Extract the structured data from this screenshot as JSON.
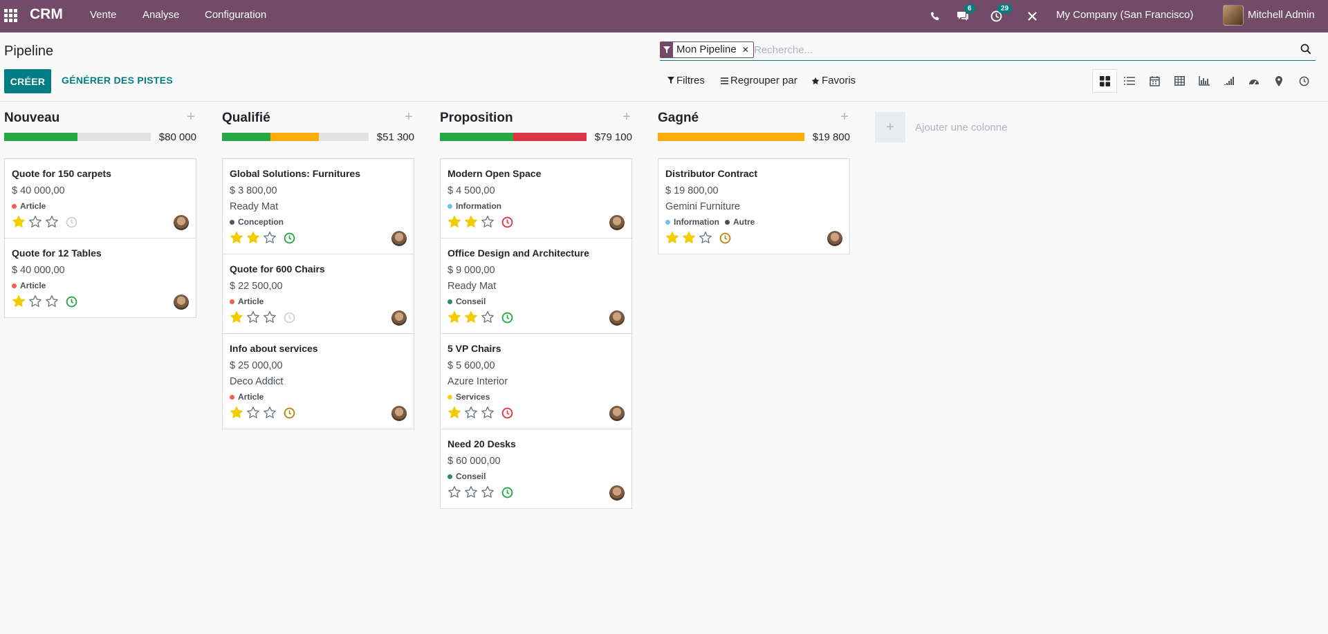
{
  "app": {
    "brand": "CRM",
    "menus": [
      "Vente",
      "Analyse",
      "Configuration"
    ],
    "messages_badge": "6",
    "activities_badge": "29",
    "company": "My Company (San Francisco)",
    "user": "Mitchell Admin"
  },
  "control": {
    "breadcrumb": "Pipeline",
    "facet": "Mon Pipeline",
    "search_placeholder": "Recherche...",
    "create_label": "CRÉER",
    "generate_label": "GÉNÉRER DES PISTES",
    "filters_label": "Filtres",
    "groupby_label": "Regrouper par",
    "favorites_label": "Favoris",
    "views": [
      "kanban",
      "list",
      "calendar",
      "pivot",
      "graph",
      "cohort",
      "dashboard",
      "map",
      "activity"
    ]
  },
  "colors": {
    "primary": "#714b67",
    "accent": "#017e84",
    "progress_green": "#28a745",
    "progress_orange": "#fbac06",
    "progress_red": "#dc3545",
    "progress_grey": "#e2e2e2"
  },
  "add_column_label": "Ajouter une colonne",
  "columns": [
    {
      "title": "Nouveau",
      "total": "$80 000",
      "progress": [
        {
          "color": "#28a745",
          "fraction": 0.5
        }
      ],
      "cards": [
        {
          "title": "Quote for 150 carpets",
          "amount": "$ 40 000,00",
          "partner": "",
          "tags": [
            {
              "label": "Article",
              "color": "#f06050"
            }
          ],
          "stars": 1,
          "activity": "none"
        },
        {
          "title": "Quote for 12 Tables",
          "amount": "$ 40 000,00",
          "partner": "",
          "tags": [
            {
              "label": "Article",
              "color": "#f06050"
            }
          ],
          "stars": 1,
          "activity": "planned"
        }
      ]
    },
    {
      "title": "Qualifié",
      "total": "$51 300",
      "progress": [
        {
          "color": "#28a745",
          "fraction": 0.33
        },
        {
          "color": "#fbac06",
          "fraction": 0.33
        }
      ],
      "cards": [
        {
          "title": "Global Solutions: Furnitures",
          "amount": "$ 3 800,00",
          "partner": "Ready Mat",
          "tags": [
            {
              "label": "Conception",
              "color": "#6c4a5f"
            }
          ],
          "stars": 2,
          "activity": "planned"
        },
        {
          "title": "Quote for 600 Chairs",
          "amount": "$ 22 500,00",
          "partner": "",
          "tags": [
            {
              "label": "Article",
              "color": "#f06050"
            }
          ],
          "stars": 1,
          "activity": "none"
        },
        {
          "title": "Info about services",
          "amount": "$ 25 000,00",
          "partner": "Deco Addict",
          "tags": [
            {
              "label": "Article",
              "color": "#f06050"
            }
          ],
          "stars": 1,
          "activity": "today"
        }
      ]
    },
    {
      "title": "Proposition",
      "total": "$79 100",
      "progress": [
        {
          "color": "#28a745",
          "fraction": 0.5
        },
        {
          "color": "#dc3545",
          "fraction": 0.5
        }
      ],
      "cards": [
        {
          "title": "Modern Open Space",
          "amount": "$ 4 500,00",
          "partner": "",
          "tags": [
            {
              "label": "Information",
              "color": "#6cc1ed"
            }
          ],
          "stars": 2,
          "activity": "overdue"
        },
        {
          "title": "Office Design and Architecture",
          "amount": "$ 9 000,00",
          "partner": "Ready Mat",
          "tags": [
            {
              "label": "Conseil",
              "color": "#30866e"
            }
          ],
          "stars": 2,
          "activity": "planned"
        },
        {
          "title": "5 VP Chairs",
          "amount": "$ 5 600,00",
          "partner": "Azure Interior",
          "tags": [
            {
              "label": "Services",
              "color": "#f7cd1f"
            }
          ],
          "stars": 1,
          "activity": "overdue"
        },
        {
          "title": "Need 20 Desks",
          "amount": "$ 60 000,00",
          "partner": "",
          "tags": [
            {
              "label": "Conseil",
              "color": "#30866e"
            }
          ],
          "stars": 0,
          "activity": "planned"
        }
      ]
    },
    {
      "title": "Gagné",
      "total": "$19 800",
      "progress": [
        {
          "color": "#fbac06",
          "fraction": 1.0
        }
      ],
      "cards": [
        {
          "title": "Distributor Contract",
          "amount": "$ 19 800,00",
          "partner": "Gemini Furniture",
          "tags": [
            {
              "label": "Information",
              "color": "#6cc1ed"
            },
            {
              "label": "Autre",
              "color": "#4d4d4d"
            }
          ],
          "stars": 2,
          "activity": "today"
        }
      ]
    }
  ]
}
